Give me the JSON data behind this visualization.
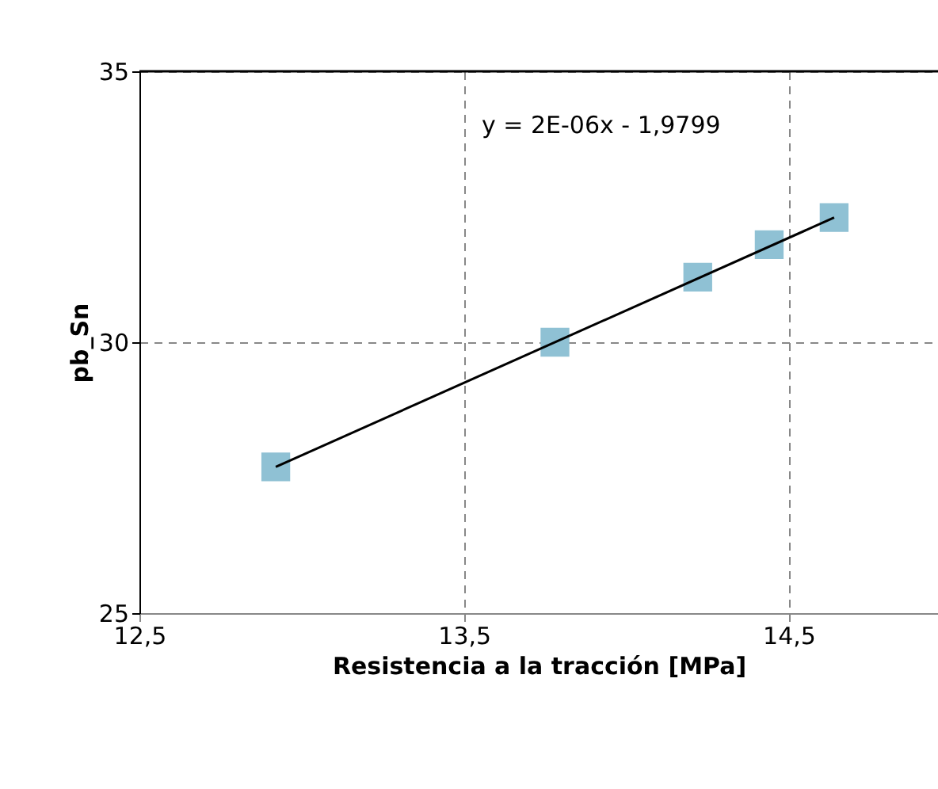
{
  "chart_data": {
    "type": "scatter",
    "xlabel": "Resistencia a la tracción [MPa]",
    "ylabel": "pb_Sn",
    "xlim": [
      12.5,
      14.96
    ],
    "xticks": [
      {
        "value": 12.5,
        "label": "12,5"
      },
      {
        "value": 13.5,
        "label": "13,5"
      },
      {
        "value": 14.5,
        "label": "14,5"
      }
    ],
    "ylim": [
      25,
      35
    ],
    "yticks": [
      25,
      30,
      35
    ],
    "grid": true,
    "annotations": [
      "y = 2E-06x - 1,9799"
    ],
    "series": [
      {
        "marker": "square",
        "color": "#8fc1d4",
        "x": [
          12.92,
          13.78,
          14.22,
          14.44,
          14.64
        ],
        "values": [
          27.7,
          30,
          31.2,
          31.8,
          32.3
        ]
      },
      {
        "type": "line",
        "marker": "none",
        "color": "#000000",
        "x": [
          12.92,
          14.64
        ],
        "values": [
          27.7,
          32.3
        ]
      }
    ]
  }
}
